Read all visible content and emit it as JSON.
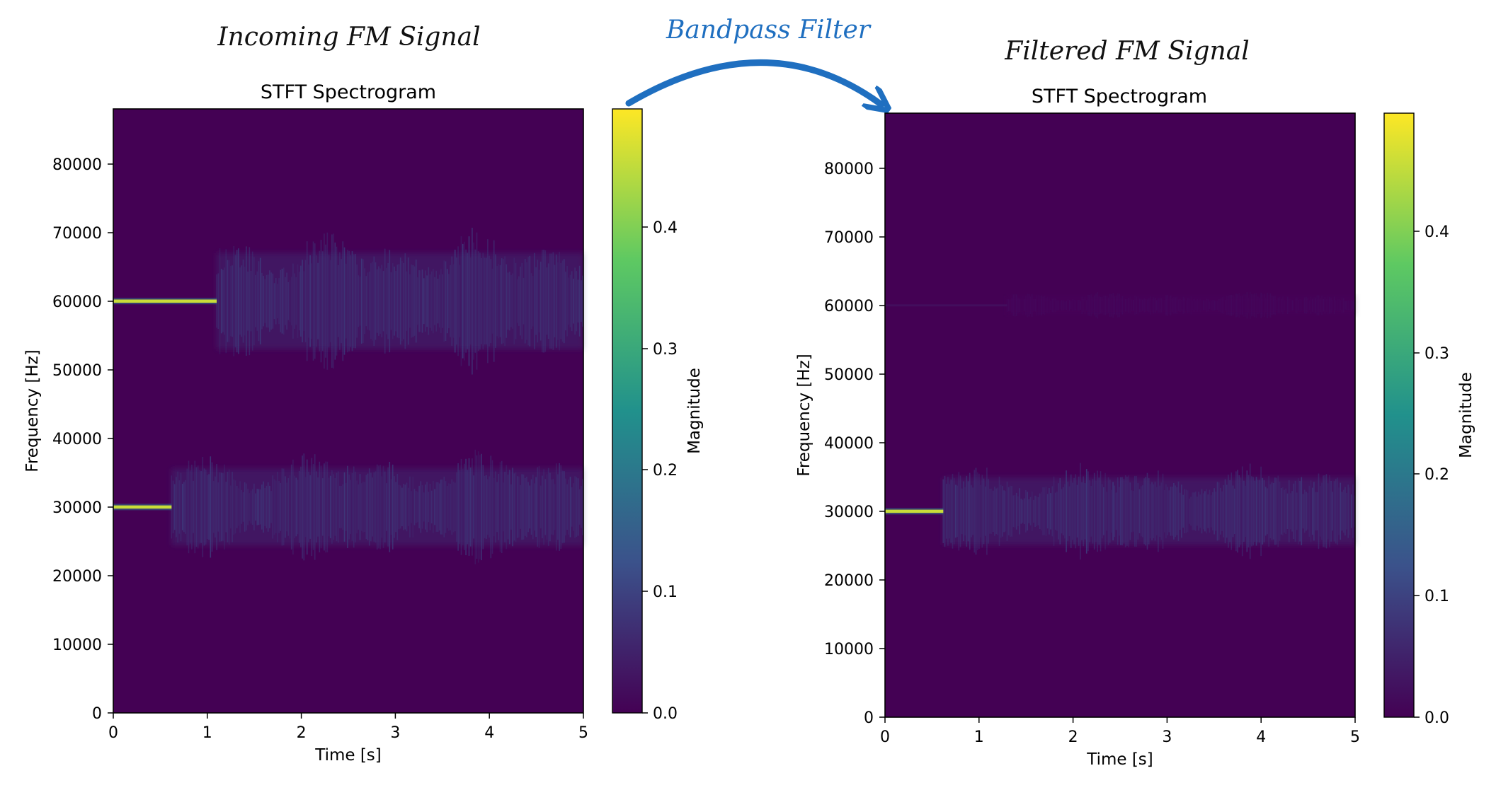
{
  "annotations": {
    "left_heading": "Incoming FM Signal",
    "right_heading": "Filtered FM Signal",
    "arrow_label": "Bandpass Filter",
    "arrow_color": "#1f6fc0"
  },
  "colormap": {
    "name": "viridis",
    "stops": [
      "#440154",
      "#3b528b",
      "#21918c",
      "#5ec962",
      "#fde725"
    ]
  },
  "chart_data": [
    {
      "type": "heatmap",
      "title": "STFT Spectrogram",
      "xlabel": "Time [s]",
      "ylabel": "Frequency [Hz]",
      "xlim": [
        0,
        5
      ],
      "ylim": [
        0,
        88000
      ],
      "xticks": [
        "0",
        "1",
        "2",
        "3",
        "4",
        "5"
      ],
      "yticks": [
        "0",
        "10000",
        "20000",
        "30000",
        "40000",
        "50000",
        "60000",
        "70000",
        "80000"
      ],
      "colorbar": {
        "label": "Magnitude",
        "range": [
          0.0,
          0.49
        ],
        "ticks": [
          "0.0",
          "0.1",
          "0.2",
          "0.3",
          "0.4"
        ]
      },
      "components": [
        {
          "carrier_hz": 30000,
          "steady_until_s": 0.62,
          "spread_hz": 8000,
          "peak_magnitude": 0.45
        },
        {
          "carrier_hz": 60000,
          "steady_until_s": 1.1,
          "spread_hz": 10000,
          "peak_magnitude": 0.45
        }
      ]
    },
    {
      "type": "heatmap",
      "title": "STFT Spectrogram",
      "xlabel": "Time [s]",
      "ylabel": "Frequency [Hz]",
      "xlim": [
        0,
        5
      ],
      "ylim": [
        0,
        88000
      ],
      "xticks": [
        "0",
        "1",
        "2",
        "3",
        "4",
        "5"
      ],
      "yticks": [
        "0",
        "10000",
        "20000",
        "30000",
        "40000",
        "50000",
        "60000",
        "70000",
        "80000"
      ],
      "colorbar": {
        "label": "Magnitude",
        "range": [
          0.0,
          0.49
        ],
        "ticks": [
          "0.0",
          "0.1",
          "0.2",
          "0.3",
          "0.4"
        ]
      },
      "components": [
        {
          "carrier_hz": 30000,
          "steady_until_s": 0.62,
          "spread_hz": 7000,
          "peak_magnitude": 0.45
        },
        {
          "carrier_hz": 60000,
          "steady_until_s": 1.3,
          "spread_hz": 2000,
          "peak_magnitude": 0.02
        }
      ]
    }
  ]
}
